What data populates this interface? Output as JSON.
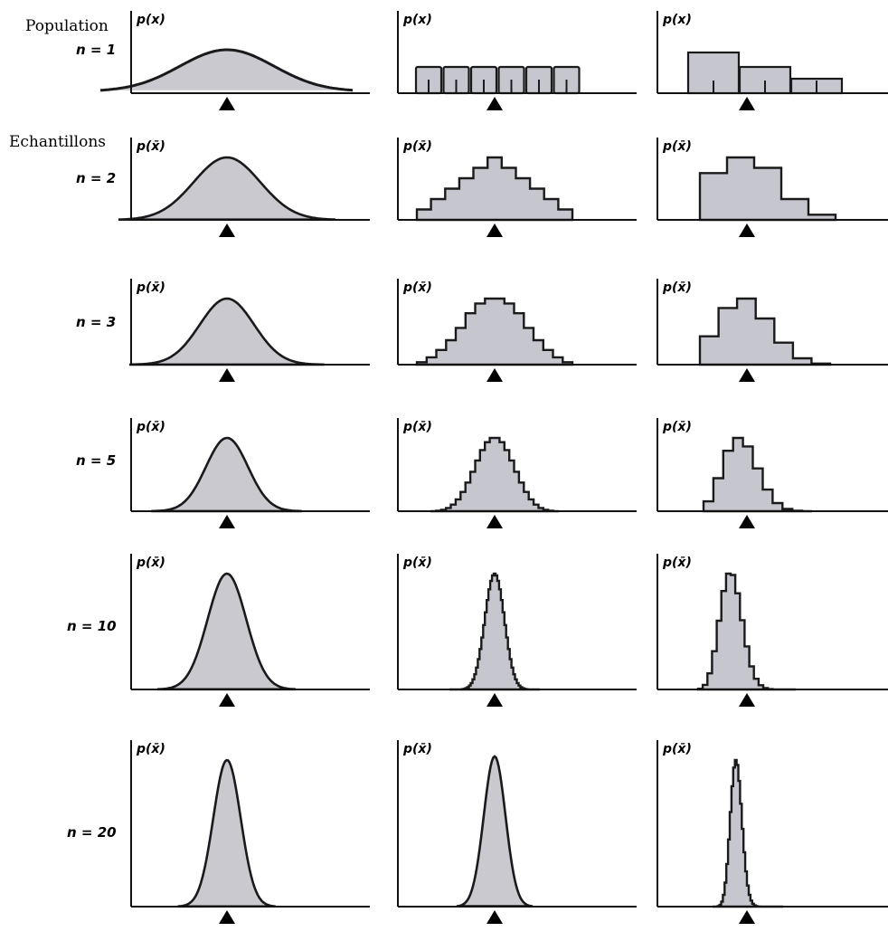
{
  "row_labels": {
    "population": "Population",
    "samples": "Echantillons",
    "n_values": [
      "n = 1",
      "n = 2",
      "n = 3",
      "n = 5",
      "n = 10",
      "n = 20"
    ]
  },
  "axis_labels": {
    "population": "p(x)",
    "sample": "p(x̄)"
  },
  "columns": [
    {
      "population_shape": "normal"
    },
    {
      "population_shape": "uniform",
      "bins": 6
    },
    {
      "population_shape": "skewed",
      "bins": [
        3,
        2,
        1
      ]
    }
  ],
  "n": [
    1,
    2,
    3,
    5,
    10,
    20
  ]
}
